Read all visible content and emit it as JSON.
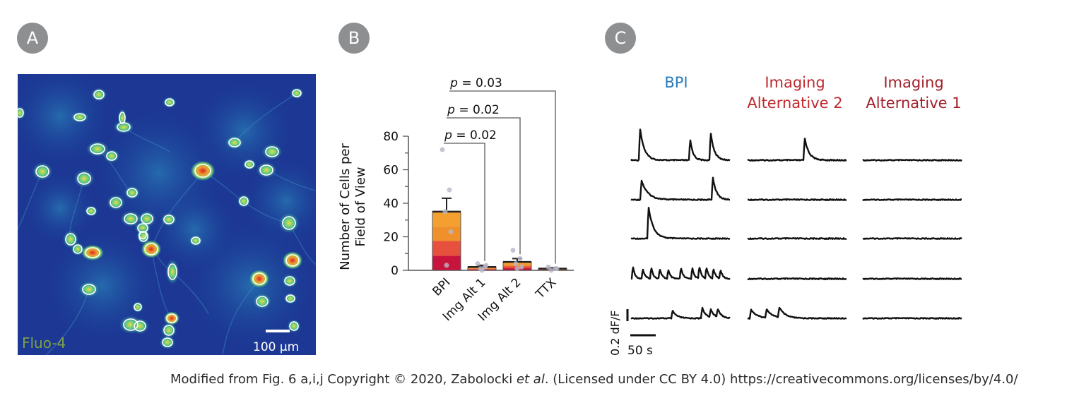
{
  "panels": {
    "a": {
      "badge": "A",
      "stain_label": "Fluo-4",
      "scale_label": "100 μm"
    },
    "b": {
      "badge": "B",
      "chart_data": {
        "type": "bar",
        "categories": [
          "BPI",
          "Img Alt 1",
          "Img Alt 2",
          "TTX"
        ],
        "values": [
          35,
          2,
          5,
          1
        ],
        "errors": [
          8,
          1,
          2,
          0.5
        ],
        "ylabel_line1": "Number of Cells per",
        "ylabel_line2": "Field of View",
        "ylim": [
          0,
          80
        ],
        "yticks": [
          0,
          20,
          40,
          60,
          80
        ],
        "stack_colors": [
          "#c8143c",
          "#e6503c",
          "#f0902a",
          "#f4a030"
        ],
        "comparisons": [
          {
            "from": "BPI",
            "to": "Img Alt 1",
            "p_prefix": "p",
            "p_value": " = 0.02"
          },
          {
            "from": "BPI",
            "to": "Img Alt 2",
            "p_prefix": "p",
            "p_value": " = 0.02"
          },
          {
            "from": "BPI",
            "to": "TTX",
            "p_prefix": "p",
            "p_value": " = 0.03"
          }
        ],
        "points": {
          "BPI": [
            72,
            48,
            35,
            23,
            3
          ],
          "Img Alt 1": [
            4,
            2,
            1,
            3,
            0
          ],
          "Img Alt 2": [
            12,
            7,
            4,
            2,
            1
          ],
          "TTX": [
            2,
            1,
            0,
            1
          ]
        }
      }
    },
    "c": {
      "badge": "C",
      "columns": [
        {
          "line1": "BPI",
          "line2": "",
          "color": "#2a7ab8"
        },
        {
          "line1": "Imaging",
          "line2": "Alternative 2",
          "color": "#c0282e"
        },
        {
          "line1": "Imaging",
          "line2": "Alternative 1",
          "color": "#a21e2a"
        }
      ],
      "scale_y_label": "0.2 dF/F",
      "scale_x_label": "50 s"
    }
  },
  "caption": {
    "part1": "Modified from Fig. 6 a,i,j  Copyright © 2020, Zabolocki ",
    "italic": "et al",
    "part2": ". (Licensed under CC BY 4.0)  https://creativecommons.org/licenses/by/4.0/"
  }
}
